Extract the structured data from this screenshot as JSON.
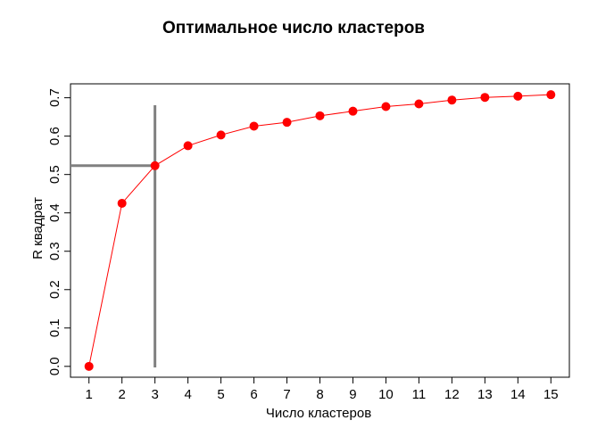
{
  "chart_data": {
    "type": "line",
    "title": "Оптимальное число кластеров",
    "xlabel": "Число кластеров",
    "ylabel": "R квадрат",
    "x": [
      1,
      2,
      3,
      4,
      5,
      6,
      7,
      8,
      9,
      10,
      11,
      12,
      13,
      14,
      15
    ],
    "series": [
      {
        "values": [
          0.0,
          0.425,
          0.523,
          0.575,
          0.603,
          0.626,
          0.636,
          0.653,
          0.665,
          0.677,
          0.684,
          0.694,
          0.701,
          0.704,
          0.708
        ]
      }
    ],
    "xticks": [
      "1",
      "2",
      "3",
      "4",
      "5",
      "6",
      "7",
      "8",
      "9",
      "10",
      "11",
      "12",
      "13",
      "14",
      "15"
    ],
    "yticks": [
      "0.0",
      "0.1",
      "0.2",
      "0.3",
      "0.4",
      "0.5",
      "0.6",
      "0.7"
    ],
    "xlim": [
      0.44,
      15.56
    ],
    "ylim": [
      -0.0283,
      0.7363
    ],
    "reference_lines": {
      "x": 3,
      "y": 0.523
    },
    "grid": false,
    "colors": {
      "series": "#ff0000",
      "reference": "#808080"
    }
  }
}
